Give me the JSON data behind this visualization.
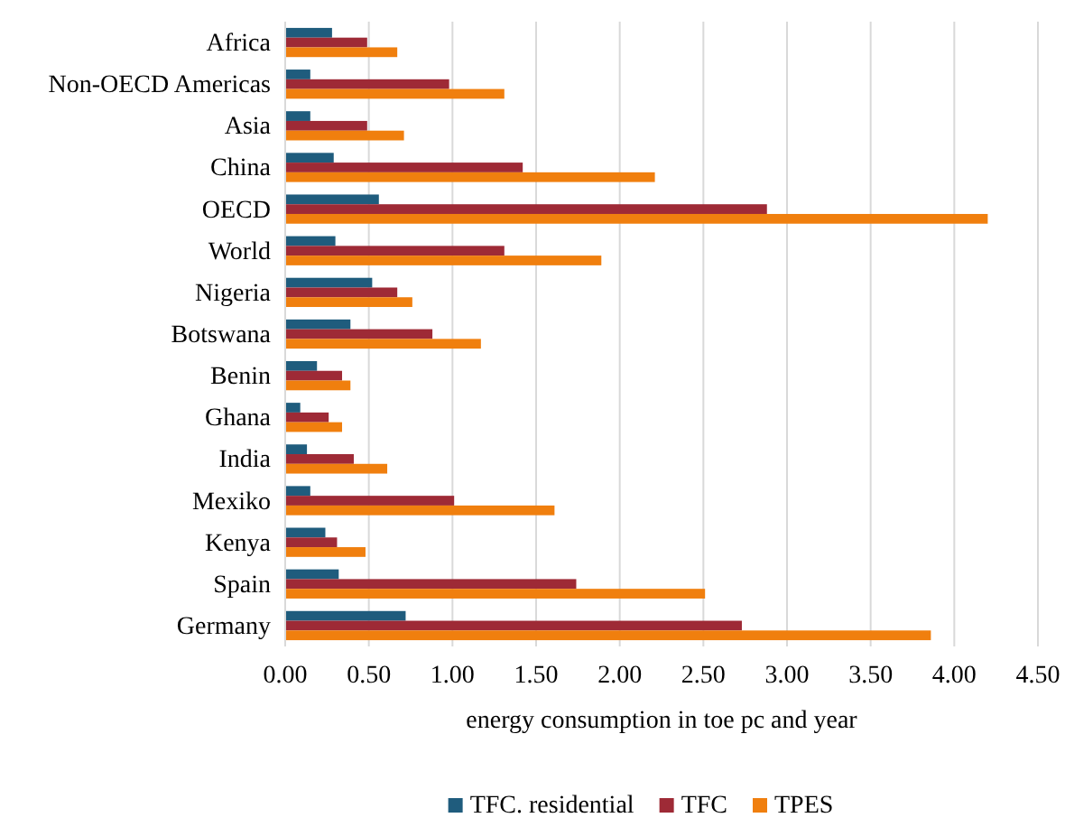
{
  "chart_data": {
    "type": "bar",
    "orientation": "horizontal",
    "xlabel": "energy consumption in toe pc and year",
    "categories": [
      "Africa",
      "Non-OECD Americas",
      "Asia",
      "China",
      "OECD",
      "World",
      "Nigeria",
      "Botswana",
      "Benin",
      "Ghana",
      "India",
      "Mexiko",
      "Kenya",
      "Spain",
      "Germany"
    ],
    "series": [
      {
        "name": "TFC. residential",
        "color": "#1f5c7d",
        "values": [
          0.28,
          0.15,
          0.15,
          0.29,
          0.56,
          0.3,
          0.52,
          0.39,
          0.19,
          0.09,
          0.13,
          0.15,
          0.24,
          0.32,
          0.72
        ]
      },
      {
        "name": "TFC",
        "color": "#9e2a36",
        "values": [
          0.49,
          0.98,
          0.49,
          1.42,
          2.88,
          1.31,
          0.67,
          0.88,
          0.34,
          0.26,
          0.41,
          1.01,
          0.31,
          1.74,
          2.73
        ]
      },
      {
        "name": "TPES",
        "color": "#f07f0e",
        "values": [
          0.67,
          1.31,
          0.71,
          2.21,
          4.2,
          1.89,
          0.76,
          1.17,
          0.39,
          0.34,
          0.61,
          1.61,
          0.48,
          2.51,
          3.86
        ]
      }
    ],
    "xlim": [
      0,
      4.5
    ],
    "xticks": [
      {
        "value": 0,
        "label": "0.00"
      },
      {
        "value": 0.5,
        "label": "0.50"
      },
      {
        "value": 1,
        "label": "1.00"
      },
      {
        "value": 1.5,
        "label": "1.50"
      },
      {
        "value": 2,
        "label": "2.00"
      },
      {
        "value": 2.5,
        "label": "2.50"
      },
      {
        "value": 3,
        "label": "3.00"
      },
      {
        "value": 3.5,
        "label": "3.50"
      },
      {
        "value": 4,
        "label": "4.00"
      },
      {
        "value": 4.5,
        "label": "4.50"
      }
    ],
    "grid": "x",
    "legend": "bottom"
  }
}
